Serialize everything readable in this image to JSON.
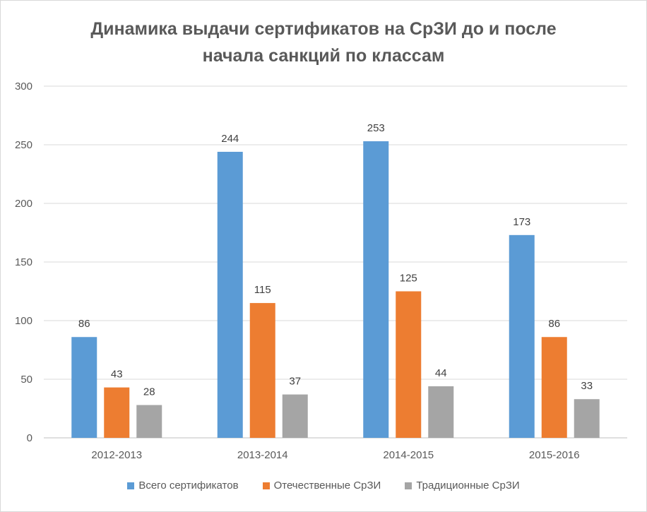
{
  "chart_data": {
    "type": "bar",
    "title_lines": [
      "Динамика выдачи сертификатов на СрЗИ до и после",
      "начала санкций по классам"
    ],
    "categories": [
      "2012-2013",
      "2013-2014",
      "2014-2015",
      "2015-2016"
    ],
    "series": [
      {
        "name": "Всего сертификатов",
        "color": "#5B9BD5",
        "values": [
          86,
          244,
          253,
          173
        ]
      },
      {
        "name": "Отечественные СрЗИ",
        "color": "#ED7D31",
        "values": [
          43,
          115,
          125,
          86
        ]
      },
      {
        "name": "Традиционные СрЗИ",
        "color": "#A5A5A5",
        "values": [
          28,
          37,
          44,
          33
        ]
      }
    ],
    "y_ticks": [
      0,
      50,
      100,
      150,
      200,
      250,
      300
    ],
    "ylim": [
      0,
      300
    ],
    "grid": true,
    "data_labels": true,
    "legend_position": "bottom"
  }
}
